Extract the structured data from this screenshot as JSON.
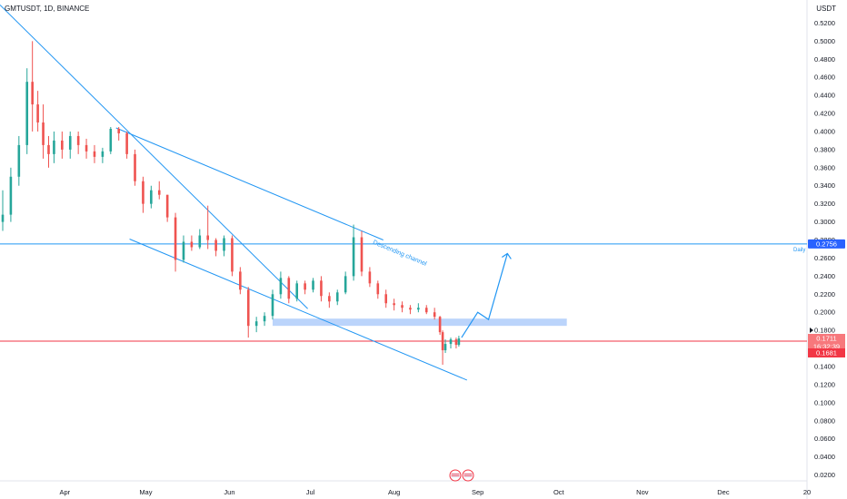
{
  "header": {
    "symbol_line": "GMTUSDT, 1D, BINANCE",
    "currency": "USDT"
  },
  "annotations": {
    "channel_label": "Descending channel",
    "daily_label": "Daily"
  },
  "badges": {
    "daily_level": "0.2756",
    "price_now": "0.1711",
    "countdown": "16:32:39",
    "red_level": "0.1681"
  },
  "colors": {
    "up": "#26a69a",
    "down": "#ef5350",
    "trend": "#2196f3",
    "support_zone": "#bbd4fb",
    "red_line": "#f23645",
    "daily_badge": "#2962ff"
  },
  "chart_data": {
    "type": "candlestick",
    "title": "GMTUSDT, 1D, BINANCE",
    "xlabel": "",
    "ylabel": "",
    "y_axis_unit": "USDT",
    "ylim": [
      0.0125,
      0.5415
    ],
    "y_ticks": [
      "0.5200",
      "0.5000",
      "0.4800",
      "0.4600",
      "0.4400",
      "0.4200",
      "0.4000",
      "0.3800",
      "0.3600",
      "0.3400",
      "0.3200",
      "0.3000",
      "0.2800",
      "0.2600",
      "0.2400",
      "0.2200",
      "0.2000",
      "0.1800",
      "0.1600",
      "0.1400",
      "0.1200",
      "0.1000",
      "0.0800",
      "0.0600",
      "0.0400",
      "0.0200"
    ],
    "x_ticks": [
      {
        "label": "Apr",
        "date": "2022-04-01"
      },
      {
        "label": "May",
        "date": "2022-05-01"
      },
      {
        "label": "Jun",
        "date": "2022-06-01"
      },
      {
        "label": "Jul",
        "date": "2022-07-01"
      },
      {
        "label": "Aug",
        "date": "2022-08-01"
      },
      {
        "label": "Sep",
        "date": "2022-09-01"
      },
      {
        "label": "Oct",
        "date": "2022-10-01"
      },
      {
        "label": "Nov",
        "date": "2022-11-01"
      },
      {
        "label": "Dec",
        "date": "2022-12-01"
      },
      {
        "label": "20",
        "date": "2023-01-01"
      }
    ],
    "x_range": [
      "2022-03-09",
      "2023-01-01"
    ],
    "grid": false,
    "series": [
      {
        "values": [
          {
            "date": "2022-03-09",
            "open": 0.3,
            "high": 0.335,
            "low": 0.29,
            "close": 0.308
          },
          {
            "date": "2022-03-12",
            "open": 0.308,
            "high": 0.36,
            "low": 0.3,
            "close": 0.35
          },
          {
            "date": "2022-03-15",
            "open": 0.35,
            "high": 0.395,
            "low": 0.34,
            "close": 0.385
          },
          {
            "date": "2022-03-18",
            "open": 0.385,
            "high": 0.47,
            "low": 0.375,
            "close": 0.455
          },
          {
            "date": "2022-03-20",
            "open": 0.455,
            "high": 0.5,
            "low": 0.4,
            "close": 0.43
          },
          {
            "date": "2022-03-22",
            "open": 0.43,
            "high": 0.445,
            "low": 0.4,
            "close": 0.41
          },
          {
            "date": "2022-03-24",
            "open": 0.41,
            "high": 0.43,
            "low": 0.37,
            "close": 0.385
          },
          {
            "date": "2022-03-26",
            "open": 0.385,
            "high": 0.395,
            "low": 0.36,
            "close": 0.375
          },
          {
            "date": "2022-03-28",
            "open": 0.375,
            "high": 0.4,
            "low": 0.365,
            "close": 0.39
          },
          {
            "date": "2022-03-31",
            "open": 0.39,
            "high": 0.4,
            "low": 0.37,
            "close": 0.38
          },
          {
            "date": "2022-04-03",
            "open": 0.38,
            "high": 0.4,
            "low": 0.37,
            "close": 0.395
          },
          {
            "date": "2022-04-06",
            "open": 0.395,
            "high": 0.4,
            "low": 0.375,
            "close": 0.385
          },
          {
            "date": "2022-04-09",
            "open": 0.385,
            "high": 0.392,
            "low": 0.37,
            "close": 0.378
          },
          {
            "date": "2022-04-12",
            "open": 0.378,
            "high": 0.385,
            "low": 0.365,
            "close": 0.372
          },
          {
            "date": "2022-04-15",
            "open": 0.372,
            "high": 0.382,
            "low": 0.365,
            "close": 0.378
          },
          {
            "date": "2022-04-18",
            "open": 0.378,
            "high": 0.405,
            "low": 0.375,
            "close": 0.403
          },
          {
            "date": "2022-04-21",
            "open": 0.403,
            "high": 0.405,
            "low": 0.39,
            "close": 0.398
          },
          {
            "date": "2022-04-24",
            "open": 0.398,
            "high": 0.4,
            "low": 0.37,
            "close": 0.375
          },
          {
            "date": "2022-04-27",
            "open": 0.375,
            "high": 0.38,
            "low": 0.34,
            "close": 0.345
          },
          {
            "date": "2022-04-30",
            "open": 0.345,
            "high": 0.35,
            "low": 0.31,
            "close": 0.32
          },
          {
            "date": "2022-05-03",
            "open": 0.32,
            "high": 0.34,
            "low": 0.315,
            "close": 0.335
          },
          {
            "date": "2022-05-06",
            "open": 0.335,
            "high": 0.345,
            "low": 0.325,
            "close": 0.33
          },
          {
            "date": "2022-05-09",
            "open": 0.33,
            "high": 0.33,
            "low": 0.3,
            "close": 0.305
          },
          {
            "date": "2022-05-12",
            "open": 0.305,
            "high": 0.31,
            "low": 0.245,
            "close": 0.258
          },
          {
            "date": "2022-05-15",
            "open": 0.258,
            "high": 0.285,
            "low": 0.255,
            "close": 0.278
          },
          {
            "date": "2022-05-18",
            "open": 0.278,
            "high": 0.285,
            "low": 0.268,
            "close": 0.272
          },
          {
            "date": "2022-05-21",
            "open": 0.272,
            "high": 0.292,
            "low": 0.27,
            "close": 0.285
          },
          {
            "date": "2022-05-24",
            "open": 0.285,
            "high": 0.318,
            "low": 0.27,
            "close": 0.28
          },
          {
            "date": "2022-05-27",
            "open": 0.28,
            "high": 0.282,
            "low": 0.262,
            "close": 0.268
          },
          {
            "date": "2022-05-30",
            "open": 0.268,
            "high": 0.285,
            "low": 0.262,
            "close": 0.282
          },
          {
            "date": "2022-06-02",
            "open": 0.282,
            "high": 0.285,
            "low": 0.24,
            "close": 0.245
          },
          {
            "date": "2022-06-05",
            "open": 0.245,
            "high": 0.25,
            "low": 0.22,
            "close": 0.225
          },
          {
            "date": "2022-06-08",
            "open": 0.225,
            "high": 0.228,
            "low": 0.172,
            "close": 0.185
          },
          {
            "date": "2022-06-11",
            "open": 0.185,
            "high": 0.195,
            "low": 0.178,
            "close": 0.19
          },
          {
            "date": "2022-06-14",
            "open": 0.19,
            "high": 0.2,
            "low": 0.185,
            "close": 0.196
          },
          {
            "date": "2022-06-17",
            "open": 0.196,
            "high": 0.225,
            "low": 0.192,
            "close": 0.22
          },
          {
            "date": "2022-06-20",
            "open": 0.22,
            "high": 0.245,
            "low": 0.215,
            "close": 0.238
          },
          {
            "date": "2022-06-23",
            "open": 0.238,
            "high": 0.24,
            "low": 0.21,
            "close": 0.215
          },
          {
            "date": "2022-06-26",
            "open": 0.215,
            "high": 0.235,
            "low": 0.212,
            "close": 0.232
          },
          {
            "date": "2022-06-29",
            "open": 0.232,
            "high": 0.235,
            "low": 0.22,
            "close": 0.225
          },
          {
            "date": "2022-07-02",
            "open": 0.225,
            "high": 0.238,
            "low": 0.222,
            "close": 0.235
          },
          {
            "date": "2022-07-05",
            "open": 0.235,
            "high": 0.24,
            "low": 0.212,
            "close": 0.218
          },
          {
            "date": "2022-07-08",
            "open": 0.218,
            "high": 0.222,
            "low": 0.205,
            "close": 0.212
          },
          {
            "date": "2022-07-11",
            "open": 0.212,
            "high": 0.225,
            "low": 0.208,
            "close": 0.222
          },
          {
            "date": "2022-07-14",
            "open": 0.222,
            "high": 0.245,
            "low": 0.22,
            "close": 0.24
          },
          {
            "date": "2022-07-17",
            "open": 0.24,
            "high": 0.297,
            "low": 0.235,
            "close": 0.283
          },
          {
            "date": "2022-07-20",
            "open": 0.283,
            "high": 0.29,
            "low": 0.24,
            "close": 0.245
          },
          {
            "date": "2022-07-23",
            "open": 0.245,
            "high": 0.25,
            "low": 0.228,
            "close": 0.232
          },
          {
            "date": "2022-07-26",
            "open": 0.232,
            "high": 0.235,
            "low": 0.215,
            "close": 0.22
          },
          {
            "date": "2022-07-29",
            "open": 0.22,
            "high": 0.225,
            "low": 0.205,
            "close": 0.21
          },
          {
            "date": "2022-08-01",
            "open": 0.21,
            "high": 0.215,
            "low": 0.202,
            "close": 0.208
          },
          {
            "date": "2022-08-04",
            "open": 0.208,
            "high": 0.212,
            "low": 0.2,
            "close": 0.205
          },
          {
            "date": "2022-08-07",
            "open": 0.205,
            "high": 0.208,
            "low": 0.198,
            "close": 0.203
          },
          {
            "date": "2022-08-10",
            "open": 0.203,
            "high": 0.21,
            "low": 0.2,
            "close": 0.205
          },
          {
            "date": "2022-08-13",
            "open": 0.205,
            "high": 0.208,
            "low": 0.198,
            "close": 0.2
          },
          {
            "date": "2022-08-16",
            "open": 0.2,
            "high": 0.205,
            "low": 0.192,
            "close": 0.195
          },
          {
            "date": "2022-08-18",
            "open": 0.195,
            "high": 0.196,
            "low": 0.175,
            "close": 0.178
          },
          {
            "date": "2022-08-19",
            "open": 0.178,
            "high": 0.18,
            "low": 0.142,
            "close": 0.158
          },
          {
            "date": "2022-08-20",
            "open": 0.158,
            "high": 0.17,
            "low": 0.155,
            "close": 0.165
          },
          {
            "date": "2022-08-22",
            "open": 0.165,
            "high": 0.172,
            "low": 0.16,
            "close": 0.17
          },
          {
            "date": "2022-08-24",
            "open": 0.17,
            "high": 0.172,
            "low": 0.16,
            "close": 0.164
          },
          {
            "date": "2022-08-25",
            "open": 0.164,
            "high": 0.174,
            "low": 0.162,
            "close": 0.171
          }
        ]
      }
    ],
    "levels": [
      {
        "name": "Daily",
        "value": 0.2756
      },
      {
        "value": 0.1681
      }
    ],
    "support_zone": [
      0.185,
      0.193
    ],
    "trendlines": [
      {
        "from": {
          "date": "2022-03-08",
          "y": 0.54
        },
        "to": {
          "date": "2022-06-30",
          "y": 0.204
        }
      },
      {
        "from": {
          "date": "2022-04-20",
          "y": 0.404
        },
        "to": {
          "date": "2022-07-28",
          "y": 0.28
        }
      },
      {
        "from": {
          "date": "2022-04-25",
          "y": 0.281
        },
        "to": {
          "date": "2022-08-28",
          "y": 0.125
        }
      }
    ],
    "projection": [
      {
        "date": "2022-08-26",
        "y": 0.172
      },
      {
        "date": "2022-09-01",
        "y": 0.2
      },
      {
        "date": "2022-09-05",
        "y": 0.192
      },
      {
        "date": "2022-09-12",
        "y": 0.265
      }
    ]
  }
}
